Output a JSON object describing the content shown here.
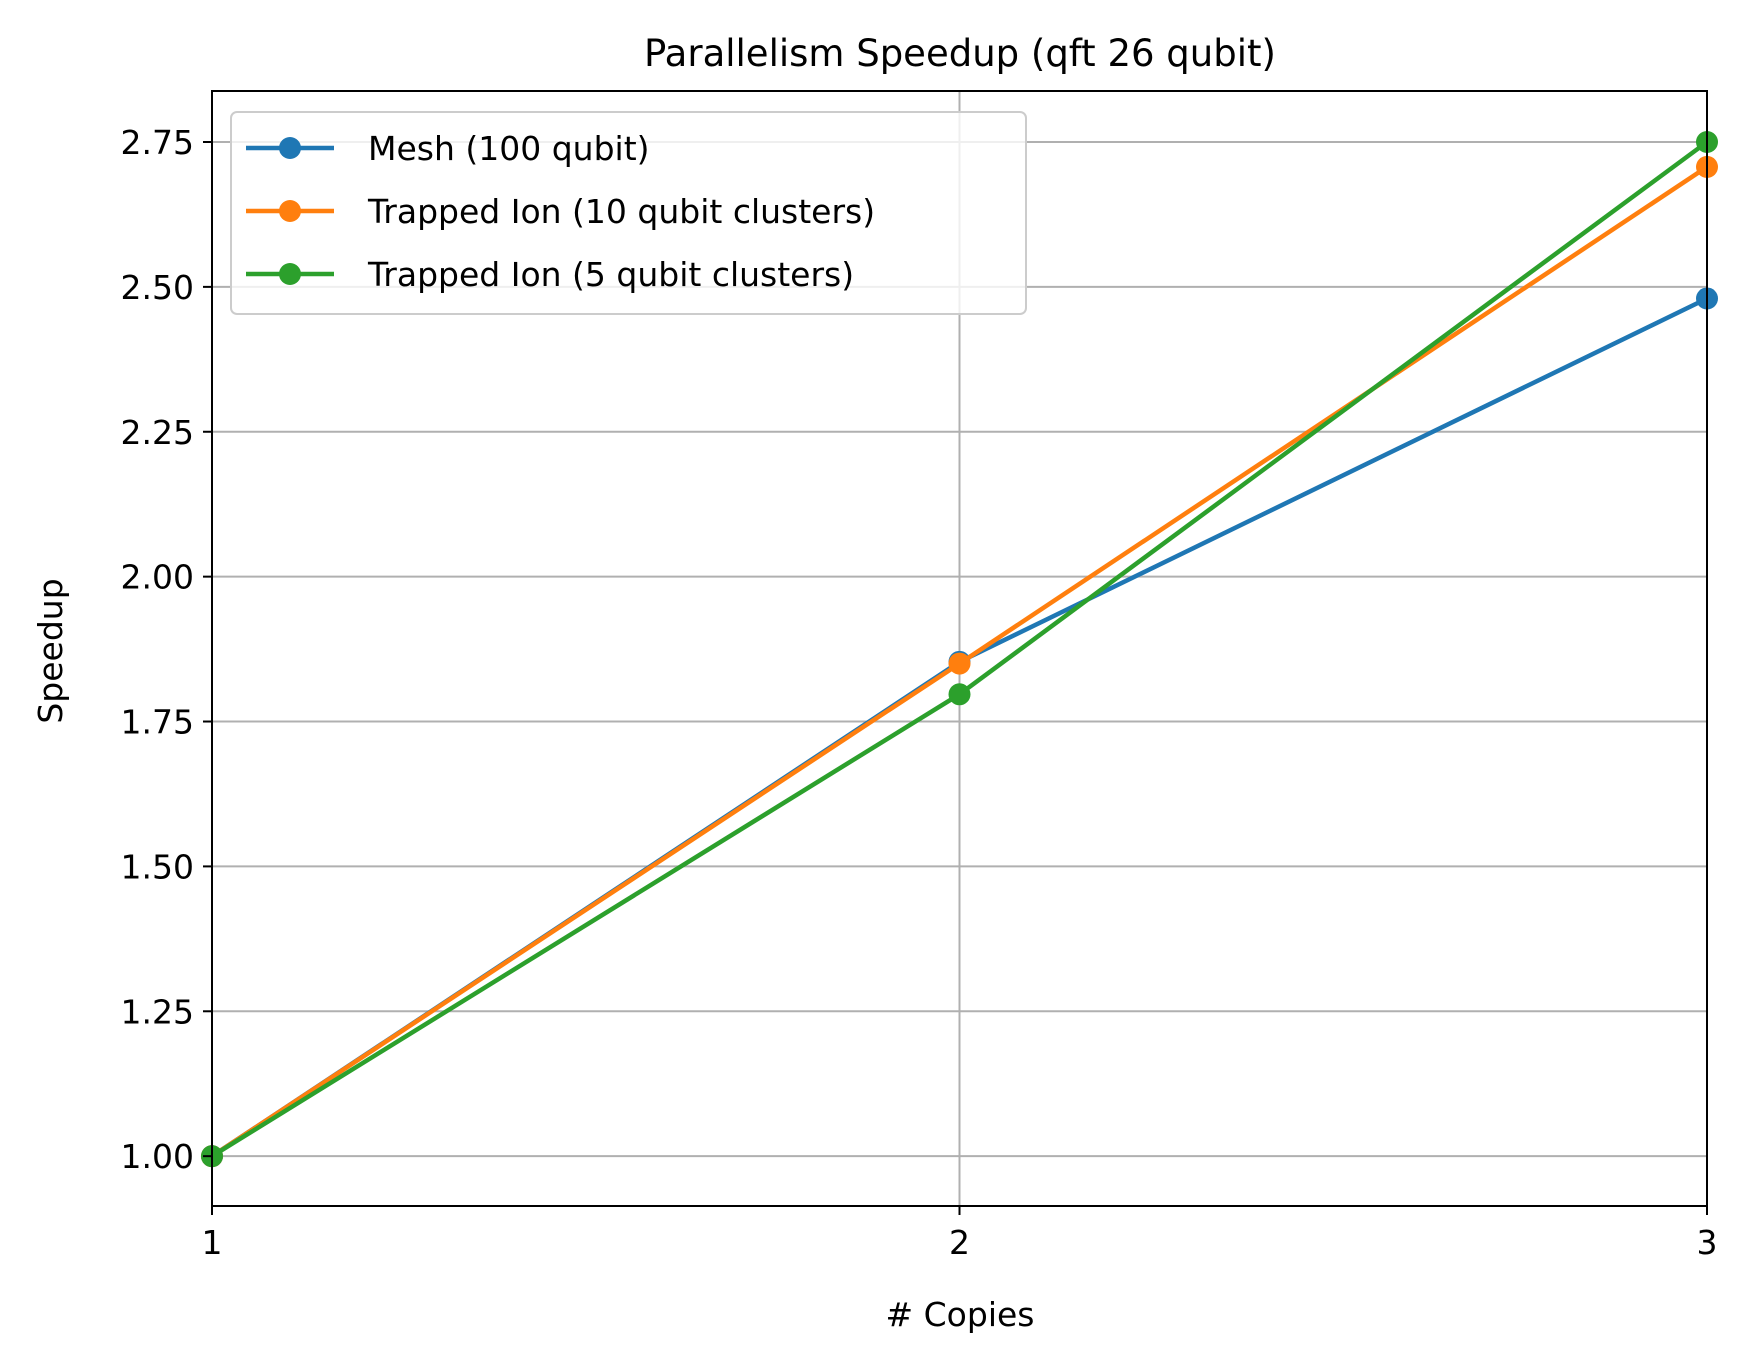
{
  "chart_data": {
    "type": "line",
    "title": "Parallelism Speedup (qft 26 qubit)",
    "xlabel": "# Copies",
    "ylabel": "Speedup",
    "x": [
      1,
      2,
      3
    ],
    "xlim": [
      1,
      3
    ],
    "ylim": [
      0.914,
      2.838
    ],
    "xticks": [
      1,
      2,
      3
    ],
    "yticks": [
      1.0,
      1.25,
      1.5,
      1.75,
      2.0,
      2.25,
      2.5,
      2.75
    ],
    "ytick_labels": [
      "1.00",
      "1.25",
      "1.50",
      "1.75",
      "2.00",
      "2.25",
      "2.50",
      "2.75"
    ],
    "grid": true,
    "legend_position": "top-left",
    "series": [
      {
        "name": "Mesh (100 qubit)",
        "color": "#1f77b4",
        "values": [
          1.0,
          1.853,
          2.48
        ]
      },
      {
        "name": "Trapped Ion (10 qubit clusters)",
        "color": "#ff7f0e",
        "values": [
          1.0,
          1.85,
          2.707
        ]
      },
      {
        "name": "Trapped Ion (5 qubit clusters)",
        "color": "#2ca02c",
        "values": [
          1.0,
          1.797,
          2.75
        ]
      }
    ]
  }
}
